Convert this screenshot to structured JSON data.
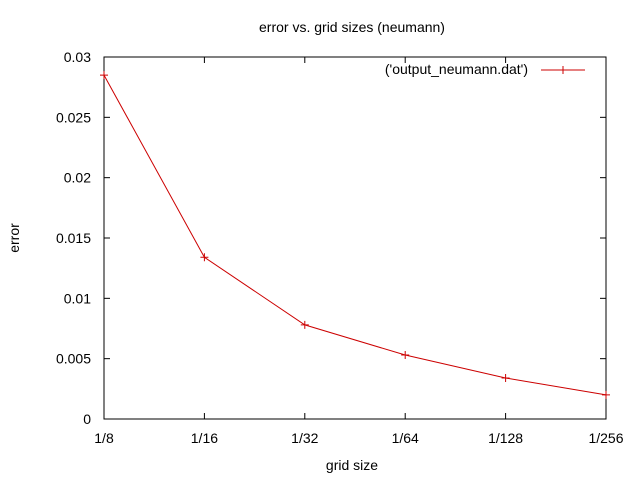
{
  "chart_data": {
    "type": "line",
    "title": "error vs. grid sizes (neumann)",
    "xlabel": "grid size",
    "ylabel": "error",
    "categories": [
      "1/8",
      "1/16",
      "1/32",
      "1/64",
      "1/128",
      "1/256"
    ],
    "ylim": [
      0,
      0.03
    ],
    "yticks": [
      "0",
      "0.005",
      "0.01",
      "0.015",
      "0.02",
      "0.025",
      "0.03"
    ],
    "grid": false,
    "legend_position": "top-right",
    "series": [
      {
        "name": "('output_neumann.dat')",
        "color": "#cc0000",
        "marker": "plus",
        "values": [
          0.0285,
          0.0134,
          0.0078,
          0.0053,
          0.0034,
          0.002
        ]
      }
    ]
  }
}
